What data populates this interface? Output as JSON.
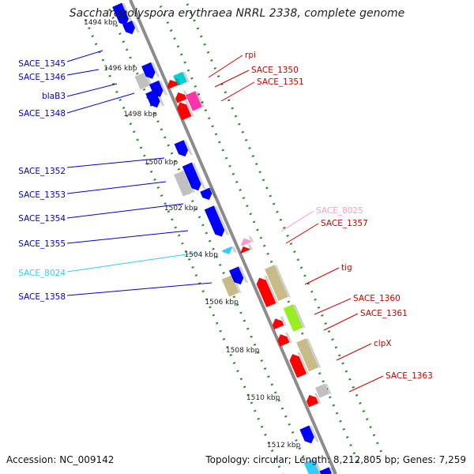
{
  "title": "Saccharopolyspora erythraea NRRL 2338, complete genome",
  "accession_text": "Accession: NC_009142",
  "topology_text": "Topology: circular; Length: 8,212,805 bp; Genes: 7,259",
  "colors": {
    "backbone": "#8c8c8c",
    "dots": "#2e8b2e",
    "left_labels": "#0000cc",
    "right_labels": "#cc0000",
    "blue_gene": "#0000ff",
    "red_gene": "#ff0000",
    "gray_gene": "#c0c0c0",
    "olive_gene": "#c8bb88",
    "cyan_gene": "#00d0d0",
    "magenta_gene": "#ff33aa",
    "light_green_gene": "#99ee22",
    "pink_gene": "#ff99cc",
    "sky_gene": "#33ccff"
  },
  "scale_labels": [
    "1494 kbp",
    "1496 kbp",
    "1498 kbp",
    "1500 kbp",
    "1502 kbp",
    "1504 kbp",
    "1506 kbp",
    "1508 kbp",
    "1510 kbp",
    "1512 kbp"
  ],
  "left_genes": [
    {
      "label": "SACE_1345",
      "color": "#0000cc"
    },
    {
      "label": "SACE_1346",
      "color": "#0000cc"
    },
    {
      "label": "blaB3",
      "color": "#0000cc"
    },
    {
      "label": "SACE_1348",
      "color": "#0000cc"
    },
    {
      "label": "SACE_1352",
      "color": "#0000cc"
    },
    {
      "label": "SACE_1353",
      "color": "#0000cc"
    },
    {
      "label": "SACE_1354",
      "color": "#0000cc"
    },
    {
      "label": "SACE_1355",
      "color": "#0000cc"
    },
    {
      "label": "SACE_8024",
      "color": "#33ccee"
    },
    {
      "label": "SACE_1358",
      "color": "#0000cc"
    }
  ],
  "right_genes": [
    {
      "label": "rpi",
      "color": "#cc0000"
    },
    {
      "label": "SACE_1350",
      "color": "#cc0000"
    },
    {
      "label": "SACE_1351",
      "color": "#cc0000"
    },
    {
      "label": "SACE_8025",
      "color": "#ff99cc"
    },
    {
      "label": "SACE_1357",
      "color": "#cc0000"
    },
    {
      "label": "tig",
      "color": "#cc0000"
    },
    {
      "label": "SACE_1360",
      "color": "#cc0000"
    },
    {
      "label": "SACE_1361",
      "color": "#cc0000"
    },
    {
      "label": "clpX",
      "color": "#cc0000"
    },
    {
      "label": "SACE_1363",
      "color": "#cc0000"
    }
  ]
}
